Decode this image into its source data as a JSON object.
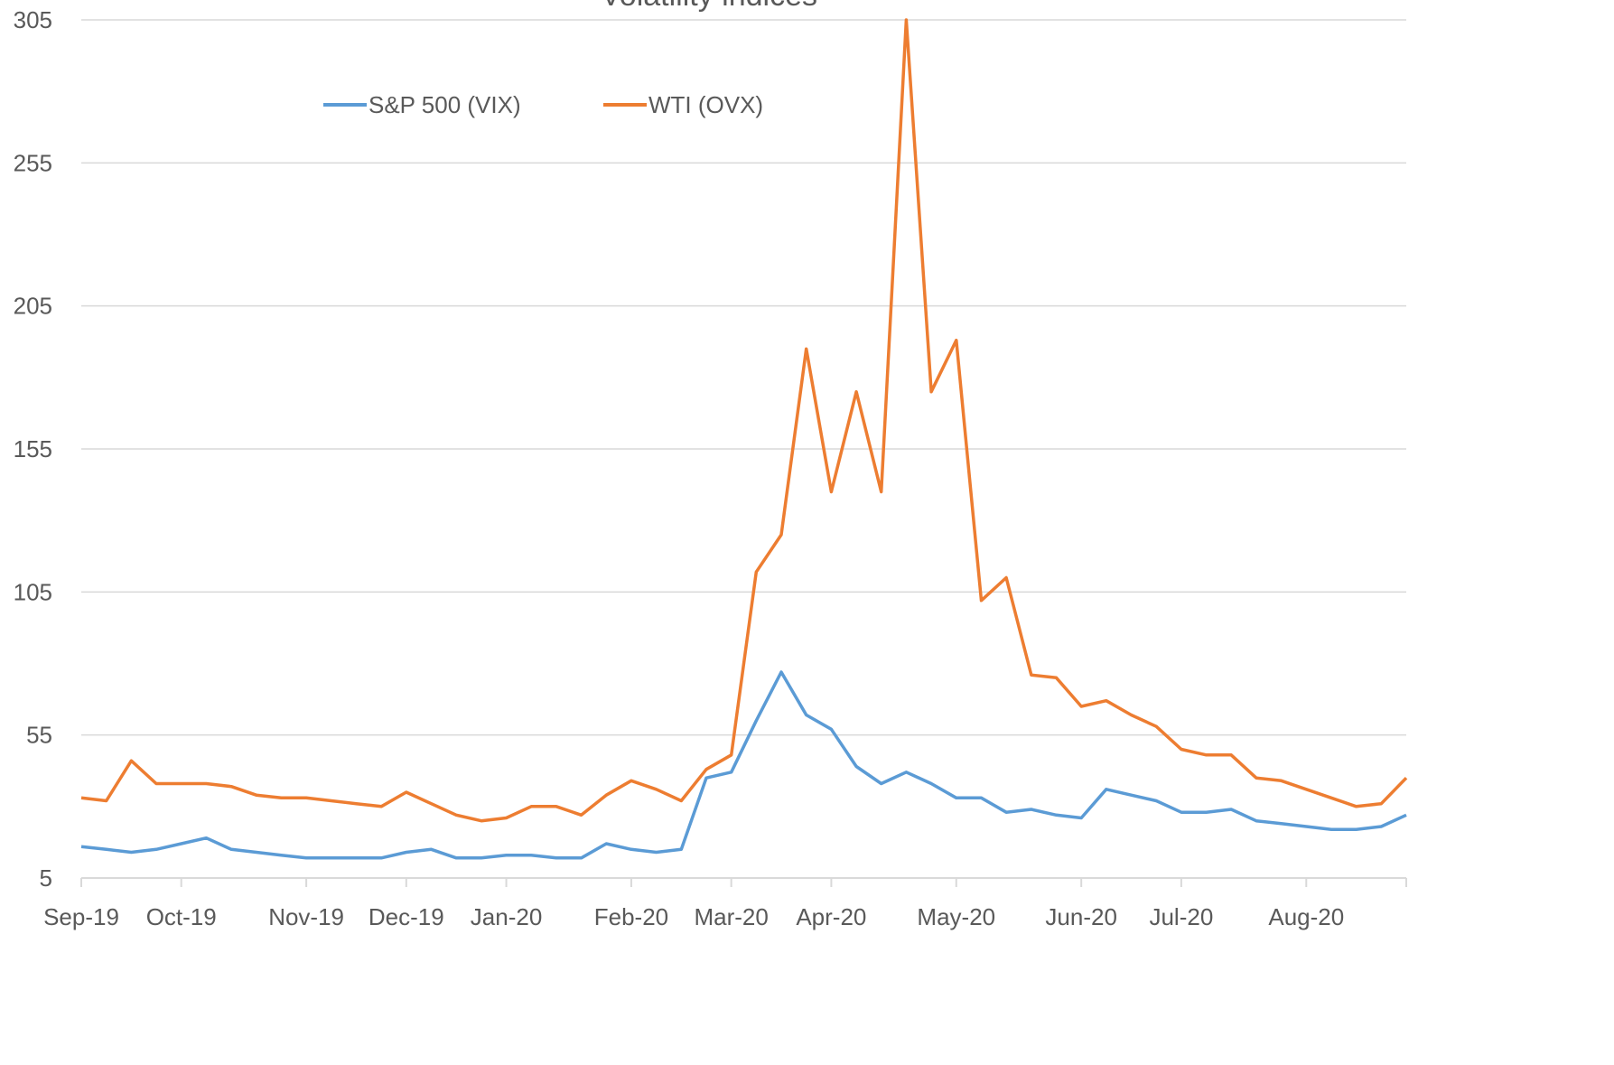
{
  "chart_data": {
    "type": "line",
    "title": "Volatility indices",
    "categories": [
      "Sep-19",
      null,
      null,
      null,
      "Oct-19",
      null,
      null,
      null,
      null,
      "Nov-19",
      null,
      null,
      null,
      "Dec-19",
      null,
      null,
      null,
      "Jan-20",
      null,
      null,
      null,
      null,
      "Feb-20",
      null,
      null,
      null,
      "Mar-20",
      null,
      null,
      null,
      "Apr-20",
      null,
      null,
      null,
      null,
      "May-20",
      null,
      null,
      null,
      null,
      "Jun-20",
      null,
      null,
      null,
      "Jul-20",
      null,
      null,
      null,
      null,
      "Aug-20",
      null,
      null,
      null,
      null
    ],
    "series": [
      {
        "name": "S&P 500 (VIX)",
        "color": "#5b9bd5",
        "values": [
          16,
          15,
          14,
          15,
          17,
          19,
          15,
          14,
          13,
          12,
          12,
          12,
          12,
          14,
          15,
          12,
          12,
          13,
          13,
          12,
          12,
          17,
          15,
          14,
          15,
          40,
          42,
          60,
          77,
          62,
          57,
          44,
          38,
          42,
          38,
          33,
          33,
          28,
          29,
          27,
          26,
          36,
          34,
          32,
          28,
          28,
          29,
          25,
          24,
          23,
          22,
          22,
          23,
          27
        ]
      },
      {
        "name": "WTI (OVX)",
        "color": "#ed7d31",
        "values": [
          33,
          32,
          46,
          38,
          38,
          38,
          37,
          34,
          33,
          33,
          32,
          31,
          30,
          35,
          31,
          27,
          25,
          26,
          30,
          30,
          27,
          34,
          39,
          36,
          32,
          43,
          48,
          112,
          125,
          190,
          140,
          175,
          140,
          305,
          175,
          193,
          102,
          110,
          76,
          75,
          65,
          67,
          62,
          58,
          50,
          48,
          48,
          40,
          39,
          36,
          33,
          30,
          31,
          40
        ]
      }
    ],
    "ylim": [
      5,
      305
    ],
    "yticks": [
      5,
      55,
      105,
      155,
      205,
      255,
      305
    ],
    "grid": true,
    "legend": "top"
  }
}
